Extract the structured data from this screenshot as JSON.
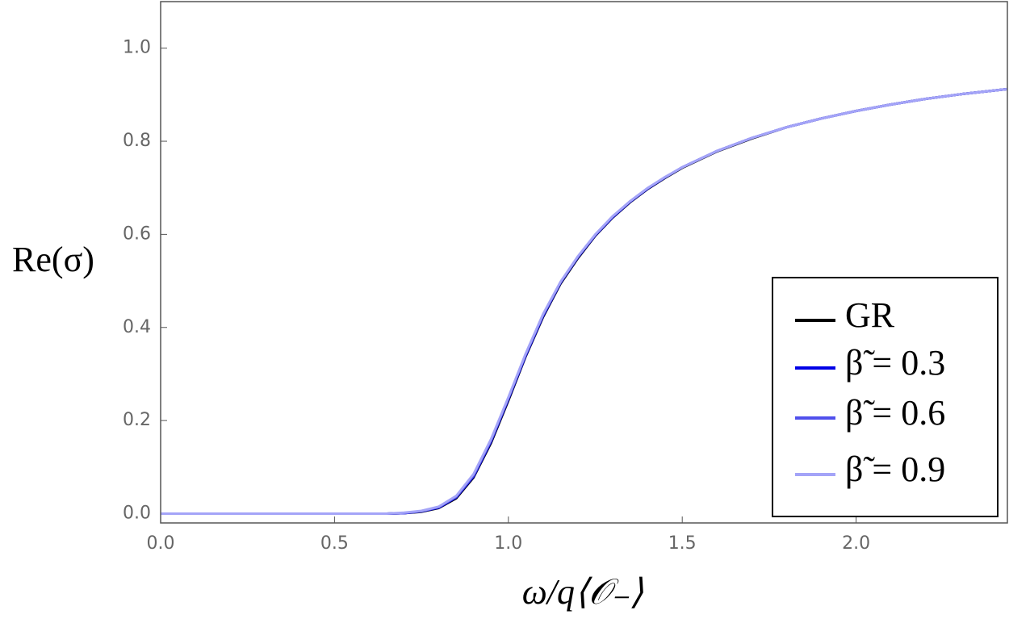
{
  "chart_data": {
    "type": "line",
    "x_label": "ω/q⟨𝒪₋⟩",
    "y_label": "Re(σ)",
    "x": [
      0,
      0.1,
      0.2,
      0.3,
      0.4,
      0.5,
      0.6,
      0.65,
      0.7,
      0.75,
      0.8,
      0.85,
      0.9,
      0.95,
      1.0,
      1.05,
      1.1,
      1.15,
      1.2,
      1.25,
      1.3,
      1.35,
      1.4,
      1.45,
      1.5,
      1.6,
      1.7,
      1.8,
      1.9,
      2.0,
      2.1,
      2.2,
      2.3,
      2.435
    ],
    "series": [
      {
        "name": "GR",
        "color": "#000000",
        "values": [
          0,
          0,
          0,
          0,
          0,
          0,
          0,
          0,
          0.001,
          0.004,
          0.012,
          0.033,
          0.078,
          0.152,
          0.243,
          0.338,
          0.423,
          0.494,
          0.549,
          0.597,
          0.636,
          0.669,
          0.697,
          0.721,
          0.743,
          0.778,
          0.806,
          0.83,
          0.849,
          0.865,
          0.879,
          0.891,
          0.901,
          0.912
        ]
      },
      {
        "name": "β̃ = 0.3",
        "color": "#0000e6",
        "values": [
          0,
          0,
          0,
          0,
          0,
          0,
          0,
          0,
          0.001,
          0.005,
          0.013,
          0.035,
          0.08,
          0.155,
          0.246,
          0.34,
          0.425,
          0.496,
          0.551,
          0.598,
          0.637,
          0.67,
          0.698,
          0.722,
          0.744,
          0.779,
          0.807,
          0.83,
          0.849,
          0.865,
          0.879,
          0.891,
          0.901,
          0.912
        ]
      },
      {
        "name": "β̃ = 0.6",
        "color": "#5050ec",
        "values": [
          0,
          0,
          0,
          0,
          0,
          0,
          0,
          0,
          0.001,
          0.005,
          0.014,
          0.036,
          0.082,
          0.157,
          0.248,
          0.342,
          0.427,
          0.497,
          0.552,
          0.599,
          0.638,
          0.671,
          0.699,
          0.722,
          0.744,
          0.779,
          0.807,
          0.83,
          0.849,
          0.865,
          0.879,
          0.891,
          0.901,
          0.912
        ]
      },
      {
        "name": "β̃ = 0.9",
        "color": "#a4a4f8",
        "values": [
          0,
          0,
          0,
          0,
          0,
          0,
          0,
          0,
          0.002,
          0.006,
          0.015,
          0.038,
          0.085,
          0.16,
          0.25,
          0.344,
          0.429,
          0.498,
          0.553,
          0.6,
          0.639,
          0.671,
          0.699,
          0.723,
          0.744,
          0.779,
          0.807,
          0.83,
          0.849,
          0.865,
          0.879,
          0.891,
          0.901,
          0.912
        ]
      }
    ],
    "xlim": [
      0,
      2.435
    ],
    "ylim": [
      -0.02,
      1.1
    ],
    "xticks": [
      {
        "value": 0,
        "label": "0.0"
      },
      0.5,
      {
        "value": 1,
        "label": "1.0"
      },
      1.5,
      {
        "value": 2,
        "label": "2.0"
      }
    ],
    "yticks": [
      {
        "value": 0,
        "label": "0.0"
      },
      0.2,
      0.4,
      0.6,
      0.8,
      {
        "value": 1,
        "label": "1.0"
      }
    ],
    "legend": "lower right",
    "grid": false
  }
}
